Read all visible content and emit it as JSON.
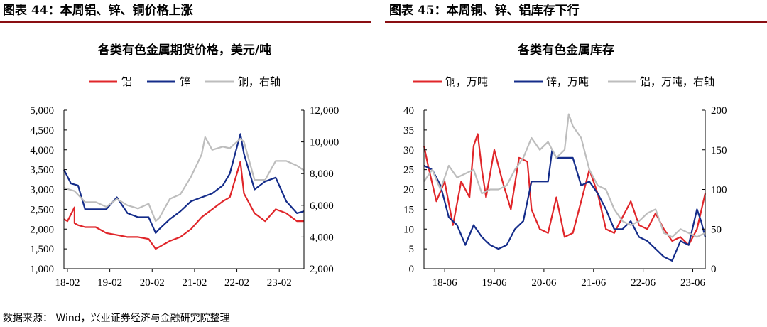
{
  "headers": {
    "left": "图表 44：本周铝、锌、铜价格上涨",
    "right": "图表 45：本周铜、锌、铝库存下行"
  },
  "source": "数据来源： Wind，兴业证券经济与金融研究院整理",
  "colors": {
    "red": "#e0262a",
    "blue": "#142c8a",
    "gray": "#bdbdbd",
    "header_rule": "#8a0e12"
  },
  "chart_data": [
    {
      "type": "line",
      "title": "各类有色金属期货价格，美元/吨",
      "x_ticks": [
        "18-02",
        "19-02",
        "20-02",
        "21-02",
        "22-02",
        "23-02"
      ],
      "y_left": {
        "lim": [
          1000,
          5000
        ],
        "ticks": [
          "1,000",
          "1,500",
          "2,000",
          "2,500",
          "3,000",
          "3,500",
          "4,000",
          "4,500",
          "5,000"
        ]
      },
      "y_right": {
        "lim": [
          2000,
          12000
        ],
        "ticks": [
          "2,000",
          "4,000",
          "6,000",
          "8,000",
          "10,000",
          "12,000"
        ]
      },
      "series": [
        {
          "name": "铝",
          "color": "#e0262a",
          "axis": "left",
          "x": [
            "2018-01",
            "2018-02",
            "2018-04",
            "2018-04",
            "2018-05",
            "2018-07",
            "2018-10",
            "2019-01",
            "2019-04",
            "2019-07",
            "2019-10",
            "2020-01",
            "2020-03",
            "2020-04",
            "2020-07",
            "2020-10",
            "2021-01",
            "2021-04",
            "2021-07",
            "2021-10",
            "2021-12",
            "2022-03",
            "2022-04",
            "2022-07",
            "2022-10",
            "2023-01",
            "2023-04",
            "2023-07",
            "2023-09"
          ],
          "values": [
            2250,
            2200,
            2550,
            2150,
            2100,
            2050,
            2050,
            1900,
            1850,
            1800,
            1800,
            1750,
            1500,
            1550,
            1700,
            1800,
            2000,
            2300,
            2500,
            2700,
            2800,
            3700,
            2900,
            2400,
            2200,
            2500,
            2400,
            2200,
            2200
          ]
        },
        {
          "name": "锌",
          "color": "#142c8a",
          "axis": "left",
          "x": [
            "2018-01",
            "2018-03",
            "2018-05",
            "2018-07",
            "2018-10",
            "2019-01",
            "2019-04",
            "2019-07",
            "2019-10",
            "2020-01",
            "2020-03",
            "2020-04",
            "2020-07",
            "2020-10",
            "2021-01",
            "2021-04",
            "2021-07",
            "2021-10",
            "2021-12",
            "2022-03",
            "2022-04",
            "2022-07",
            "2022-10",
            "2023-01",
            "2023-04",
            "2023-07",
            "2023-09"
          ],
          "values": [
            3500,
            3150,
            3100,
            2500,
            2500,
            2500,
            2800,
            2400,
            2300,
            2300,
            1900,
            2000,
            2250,
            2450,
            2700,
            2800,
            2900,
            3100,
            3400,
            4400,
            3900,
            3000,
            3200,
            3300,
            2700,
            2400,
            2450
          ]
        },
        {
          "name": "铜，右轴",
          "color": "#bdbdbd",
          "axis": "right",
          "x": [
            "2018-01",
            "2018-04",
            "2018-07",
            "2018-10",
            "2019-01",
            "2019-04",
            "2019-07",
            "2019-10",
            "2020-01",
            "2020-03",
            "2020-04",
            "2020-07",
            "2020-10",
            "2021-01",
            "2021-04",
            "2021-05",
            "2021-07",
            "2021-10",
            "2021-12",
            "2022-03",
            "2022-04",
            "2022-07",
            "2022-10",
            "2023-01",
            "2023-04",
            "2023-07",
            "2023-09"
          ],
          "values": [
            7100,
            6900,
            6200,
            6200,
            5900,
            6400,
            6000,
            5800,
            6100,
            5000,
            5200,
            6400,
            6700,
            7800,
            9200,
            10300,
            9500,
            9700,
            9600,
            10200,
            10000,
            7600,
            7600,
            8800,
            8800,
            8500,
            8200
          ]
        }
      ]
    },
    {
      "type": "line",
      "title": "各类有色金属库存",
      "x_ticks": [
        "18-06",
        "19-06",
        "20-06",
        "21-06",
        "22-06",
        "23-06"
      ],
      "y_left": {
        "lim": [
          0,
          40
        ],
        "ticks": [
          "0",
          "5",
          "10",
          "15",
          "20",
          "25",
          "30",
          "35",
          "40"
        ]
      },
      "y_right": {
        "lim": [
          0,
          200
        ],
        "ticks": [
          "0",
          "50",
          "100",
          "150",
          "200"
        ]
      },
      "series": [
        {
          "name": "铜，万吨",
          "color": "#e0262a",
          "axis": "left",
          "x": [
            "2018-01",
            "2018-02",
            "2018-04",
            "2018-06",
            "2018-08",
            "2018-10",
            "2018-12",
            "2019-01",
            "2019-02",
            "2019-03",
            "2019-04",
            "2019-06",
            "2019-08",
            "2019-10",
            "2019-12",
            "2020-02",
            "2020-03",
            "2020-05",
            "2020-07",
            "2020-09",
            "2020-11",
            "2021-01",
            "2021-03",
            "2021-05",
            "2021-07",
            "2021-09",
            "2021-11",
            "2022-01",
            "2022-03",
            "2022-05",
            "2022-07",
            "2022-09",
            "2022-11",
            "2023-01",
            "2023-03",
            "2023-05",
            "2023-07",
            "2023-09"
          ],
          "values": [
            31,
            26,
            17,
            22,
            11,
            22,
            18,
            31,
            34,
            25,
            18,
            30,
            22,
            15,
            28,
            27,
            15,
            10,
            9,
            18,
            8,
            9,
            17,
            25,
            19,
            10,
            9,
            13,
            17,
            11,
            10,
            14,
            10,
            7,
            8,
            6,
            10,
            19
          ]
        },
        {
          "name": "锌，万吨",
          "color": "#142c8a",
          "axis": "left",
          "x": [
            "2018-01",
            "2018-03",
            "2018-05",
            "2018-07",
            "2018-09",
            "2018-11",
            "2019-01",
            "2019-03",
            "2019-05",
            "2019-07",
            "2019-09",
            "2019-11",
            "2020-01",
            "2020-03",
            "2020-05",
            "2020-07",
            "2020-08",
            "2020-09",
            "2020-11",
            "2021-01",
            "2021-03",
            "2021-05",
            "2021-07",
            "2021-09",
            "2021-11",
            "2022-01",
            "2022-03",
            "2022-05",
            "2022-07",
            "2022-09",
            "2022-11",
            "2023-01",
            "2023-03",
            "2023-05",
            "2023-07",
            "2023-08",
            "2023-09"
          ],
          "values": [
            26,
            25,
            21,
            13,
            11,
            6,
            11,
            8,
            6,
            5,
            6,
            10,
            12,
            22,
            22,
            22,
            30,
            28,
            28,
            28,
            21,
            22,
            19,
            15,
            10,
            10,
            12,
            8,
            7,
            5,
            3,
            2,
            7,
            6,
            15,
            12,
            8
          ]
        },
        {
          "name": "铝，万吨，右轴",
          "color": "#bdbdbd",
          "axis": "right",
          "x": [
            "2018-01",
            "2018-03",
            "2018-05",
            "2018-07",
            "2018-09",
            "2018-11",
            "2019-01",
            "2019-03",
            "2019-05",
            "2019-07",
            "2019-09",
            "2019-11",
            "2020-01",
            "2020-03",
            "2020-05",
            "2020-07",
            "2020-09",
            "2020-11",
            "2020-12",
            "2021-01",
            "2021-03",
            "2021-05",
            "2021-07",
            "2021-09",
            "2021-11",
            "2022-01",
            "2022-03",
            "2022-05",
            "2022-07",
            "2022-09",
            "2022-11",
            "2023-01",
            "2023-03",
            "2023-05",
            "2023-07",
            "2023-09"
          ],
          "values": [
            110,
            125,
            100,
            130,
            115,
            120,
            125,
            95,
            100,
            100,
            105,
            125,
            140,
            165,
            150,
            160,
            140,
            150,
            195,
            180,
            165,
            125,
            105,
            100,
            75,
            60,
            55,
            60,
            70,
            75,
            45,
            40,
            50,
            45,
            40,
            45
          ]
        }
      ]
    }
  ]
}
